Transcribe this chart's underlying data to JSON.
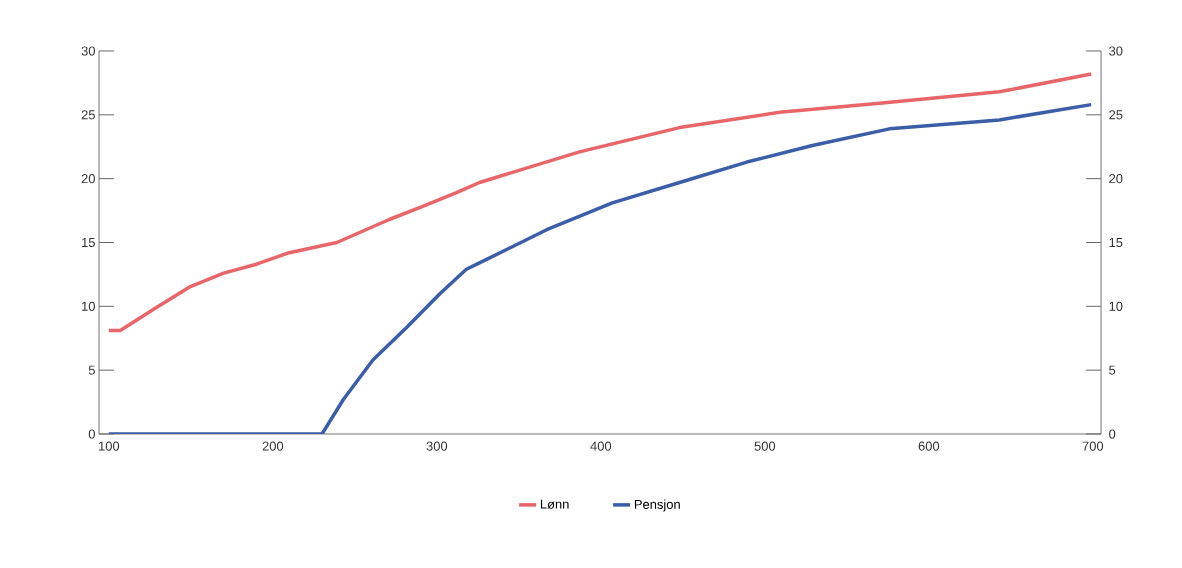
{
  "chart_data": {
    "type": "line",
    "xlim": [
      94,
      705
    ],
    "xticks": [
      100,
      200,
      300,
      400,
      500,
      600,
      700
    ],
    "ylim": [
      0,
      30
    ],
    "yticks": [
      0,
      5,
      10,
      15,
      20,
      25,
      30
    ],
    "y2lim": [
      0,
      30
    ],
    "y2ticks": [
      0,
      5,
      10,
      15,
      20,
      25,
      30
    ],
    "legend": "bottom",
    "grid": false,
    "series": [
      {
        "name": "Lønn",
        "color": "#e8666a",
        "x": [
          100,
          107,
          129,
          149,
          170,
          190,
          210,
          239,
          271,
          291,
          312,
          326,
          387,
          448,
          509,
          570,
          643,
          699
        ],
        "values": [
          8.1,
          8.1,
          9.9,
          11.5,
          12.6,
          13.3,
          14.2,
          15.0,
          16.8,
          17.8,
          18.9,
          19.7,
          22.1,
          24.0,
          25.2,
          25.9,
          26.8,
          28.2
        ]
      },
      {
        "name": "Pensjon",
        "color": "#3c5ea8",
        "x": [
          100,
          230,
          243,
          261,
          282,
          302,
          318,
          326,
          367,
          407,
          448,
          489,
          529,
          576,
          643,
          699
        ],
        "values": [
          0,
          0,
          2.7,
          5.8,
          8.4,
          11.0,
          12.9,
          13.4,
          16.0,
          18.1,
          19.7,
          21.3,
          22.6,
          23.9,
          24.6,
          25.8
        ]
      }
    ]
  }
}
